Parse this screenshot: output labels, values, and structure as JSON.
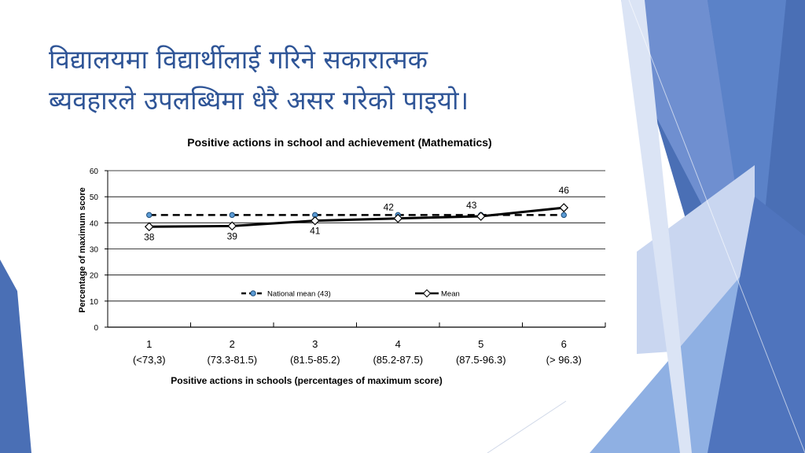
{
  "slide": {
    "title_line1": "विद्यालयमा विद्यार्थीलाई गरिने सकारात्मक",
    "title_line2": "ब्यवहारले उपलब्धिमा धेरै असर गरेको पाइयो।"
  },
  "theme": {
    "title_color": "#2f5597",
    "accent_dark": "#4a6fb5",
    "accent_mid": "#6f8fd0",
    "accent_light": "#9fb8e6",
    "accent_pale": "#c9d6f0"
  },
  "chart_data": {
    "type": "line",
    "title": "Positive actions in school and achievement (Mathematics)",
    "xlabel": "Positive actions in schools (percentages of maximum score)",
    "ylabel": "Percentage of maximum score",
    "ylim": [
      0,
      60
    ],
    "yticks": [
      "0",
      "10",
      "20",
      "30",
      "40",
      "50",
      "60"
    ],
    "grid": true,
    "legend_position": "inside-bottom-center",
    "categories": [
      {
        "num": "1",
        "range": "(<73,3)"
      },
      {
        "num": "2",
        "range": "(73.3-81.5)"
      },
      {
        "num": "3",
        "range": "(81.5-85.2)"
      },
      {
        "num": "4",
        "range": "(85.2-87.5)"
      },
      {
        "num": "5",
        "range": "(87.5-96.3)"
      },
      {
        "num": "6",
        "range": "(> 96.3)"
      }
    ],
    "series": [
      {
        "name": "National mean (43)",
        "style": "dashed",
        "values": [
          43,
          43,
          43,
          43,
          43,
          43
        ],
        "labels": [
          "",
          "",
          "",
          "",
          "",
          ""
        ]
      },
      {
        "name": "Mean",
        "style": "solid",
        "values": [
          38.5,
          38.8,
          40.8,
          41.7,
          42.5,
          45.8
        ],
        "labels": [
          "38",
          "39",
          "41",
          "42",
          "43",
          "46"
        ]
      }
    ]
  }
}
